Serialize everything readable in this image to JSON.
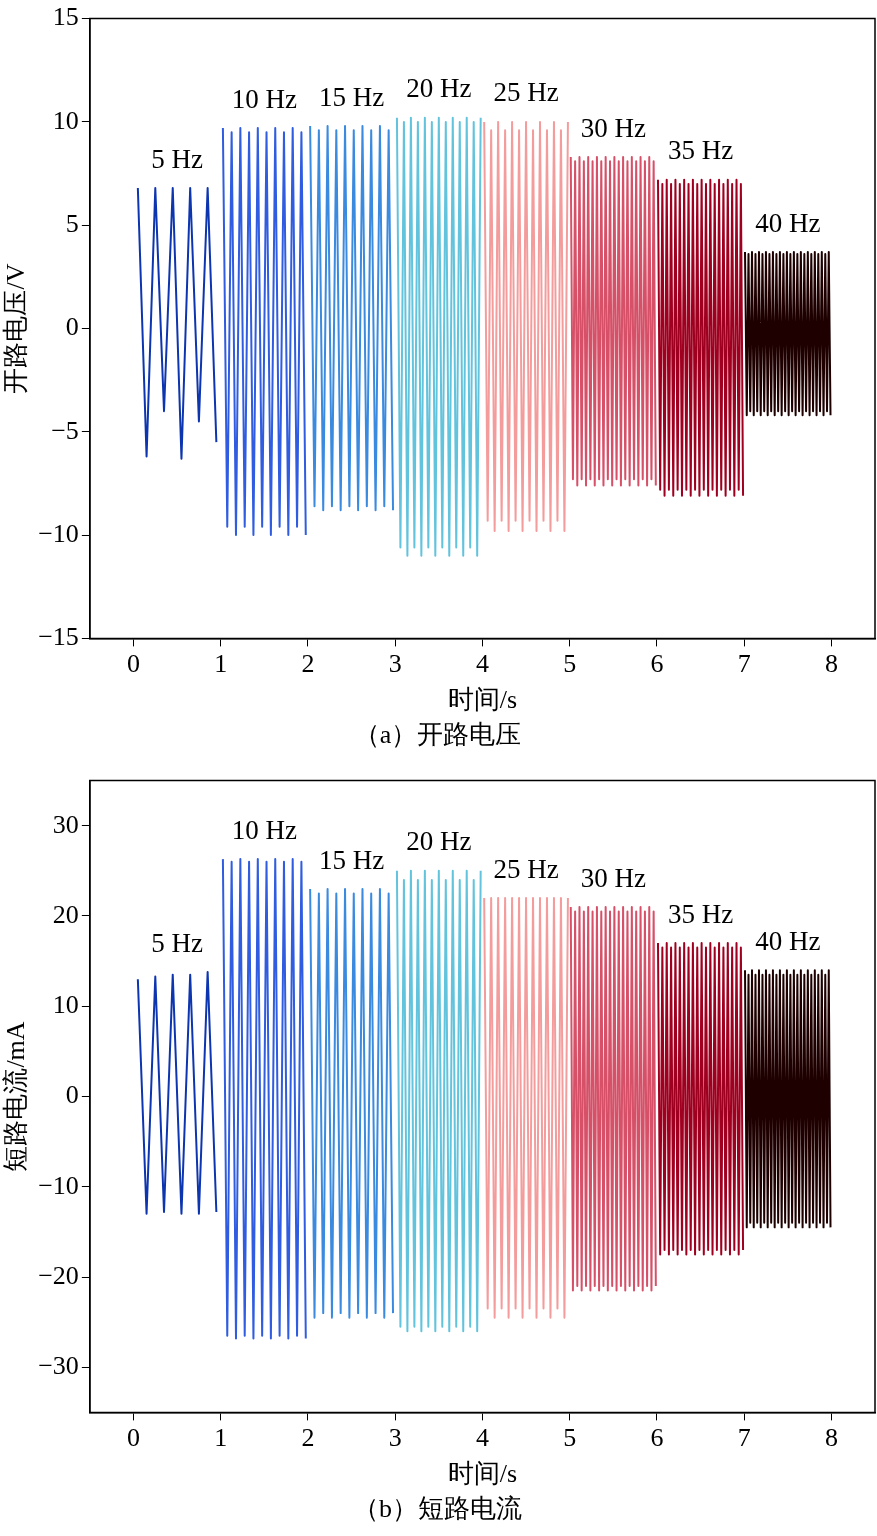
{
  "chart_data": [
    {
      "type": "line",
      "title": "（a）开路电压",
      "xlabel": "时间/s",
      "ylabel": "开路电压/V",
      "xlim": [
        -0.5,
        8.5
      ],
      "ylim": [
        -15,
        15
      ],
      "xticks": [
        0,
        1,
        2,
        3,
        4,
        5,
        6,
        7,
        8
      ],
      "yticks": [
        {
          "value": -15,
          "label": "−15"
        },
        {
          "value": -10,
          "label": "−10"
        },
        {
          "value": -5,
          "label": "−5"
        },
        0,
        5,
        10,
        15
      ],
      "grid": false,
      "legend": false,
      "marker": "none",
      "series": [
        {
          "color": "#0d35b0",
          "x": [
            0.05,
            0.15,
            0.25,
            0.35,
            0.45,
            0.55,
            0.65,
            0.75,
            0.85,
            0.95
          ],
          "name": "5 Hz",
          "values": [
            6.8,
            -6.2,
            6.8,
            -4,
            6.8,
            -6.3,
            6.8,
            -4.5,
            6.8,
            -5.5
          ]
        },
        {
          "color": "#2f5ce0",
          "x": [
            1.025,
            1.075,
            1.125,
            1.175,
            1.225,
            1.275,
            1.325,
            1.375,
            1.425,
            1.475,
            1.525,
            1.575,
            1.625,
            1.675,
            1.725,
            1.775,
            1.825,
            1.875,
            1.925,
            1.975
          ],
          "name": "10 Hz",
          "values": [
            9.7,
            -9.6,
            9.5,
            -10,
            9.7,
            -9.6,
            9.5,
            -10,
            9.7,
            -9.6,
            9.5,
            -10,
            9.7,
            -9.6,
            9.5,
            -10,
            9.7,
            -9.6,
            9.5,
            -10
          ]
        },
        {
          "color": "#3a8ae0",
          "x": [
            2.025,
            2.075,
            2.125,
            2.175,
            2.225,
            2.275,
            2.325,
            2.375,
            2.425,
            2.475,
            2.525,
            2.575,
            2.625,
            2.675,
            2.725,
            2.775,
            2.825,
            2.875,
            2.925,
            2.975
          ],
          "name": "15 Hz",
          "values": [
            9.8,
            -8.6,
            9.6,
            -8.8,
            9.8,
            -8.6,
            9.6,
            -8.8,
            9.8,
            -8.6,
            9.6,
            -8.8,
            9.8,
            -8.6,
            9.6,
            -8.8,
            9.8,
            -8.6,
            9.6,
            -8.8
          ]
        },
        {
          "color": "#62c3dc",
          "x": [
            3.02,
            3.06,
            3.1,
            3.14,
            3.18,
            3.22,
            3.26,
            3.3,
            3.34,
            3.38,
            3.42,
            3.46,
            3.5,
            3.54,
            3.58,
            3.62,
            3.66,
            3.7,
            3.74,
            3.78,
            3.82,
            3.86,
            3.9,
            3.94,
            3.98
          ],
          "name": "20 Hz",
          "values": [
            10.2,
            -10.6,
            10,
            -11,
            10.2,
            -10.6,
            10,
            -11,
            10.2,
            -10.6,
            10,
            -11,
            10.2,
            -10.6,
            10,
            -11,
            10.2,
            -10.6,
            10,
            -11,
            10.2,
            -10.6,
            10,
            -11,
            10.2
          ]
        },
        {
          "color": "#f49c9c",
          "x": [
            4.02,
            4.06,
            4.1,
            4.14,
            4.18,
            4.22,
            4.26,
            4.3,
            4.34,
            4.38,
            4.42,
            4.46,
            4.5,
            4.54,
            4.58,
            4.62,
            4.66,
            4.7,
            4.74,
            4.78,
            4.82,
            4.86,
            4.9,
            4.94,
            4.98
          ],
          "name": "25 Hz",
          "values": [
            10,
            -9.3,
            9.6,
            -9.8,
            10,
            -9.3,
            9.6,
            -9.8,
            10,
            -9.3,
            9.6,
            -9.8,
            10,
            -9.3,
            9.6,
            -9.8,
            10,
            -9.3,
            9.6,
            -9.8,
            10,
            -9.3,
            9.6,
            -9.8,
            10
          ]
        },
        {
          "color": "#d65068",
          "x": [
            5.0125,
            5.0375,
            5.0625,
            5.0875,
            5.1125,
            5.1375,
            5.1625,
            5.1875,
            5.2125,
            5.2375,
            5.2625,
            5.2875,
            5.3125,
            5.3375,
            5.3625,
            5.3875,
            5.4125,
            5.4375,
            5.4625,
            5.4875,
            5.5125,
            5.5375,
            5.5625,
            5.5875,
            5.6125,
            5.6375,
            5.6625,
            5.6875,
            5.7125,
            5.7375,
            5.7625,
            5.7875,
            5.8125,
            5.8375,
            5.8625,
            5.8875,
            5.9125,
            5.9375,
            5.9625,
            5.9875
          ],
          "name": "30 Hz",
          "values": [
            8.3,
            -7.3,
            8.1,
            -7.6,
            8.3,
            -7.3,
            8.1,
            -7.6,
            8.3,
            -7.3,
            8.1,
            -7.6,
            8.3,
            -7.3,
            8.1,
            -7.6,
            8.3,
            -7.3,
            8.1,
            -7.6,
            8.3,
            -7.3,
            8.1,
            -7.6,
            8.3,
            -7.3,
            8.1,
            -7.6,
            8.3,
            -7.3,
            8.1,
            -7.6,
            8.3,
            -7.3,
            8.1,
            -7.6,
            8.3,
            -7.3,
            8.1,
            -7.6
          ]
        },
        {
          "color": "#a00020",
          "x": [
            6.0125,
            6.0375,
            6.0625,
            6.0875,
            6.1125,
            6.1375,
            6.1625,
            6.1875,
            6.2125,
            6.2375,
            6.2625,
            6.2875,
            6.3125,
            6.3375,
            6.3625,
            6.3875,
            6.4125,
            6.4375,
            6.4625,
            6.4875,
            6.5125,
            6.5375,
            6.5625,
            6.5875,
            6.6125,
            6.6375,
            6.6625,
            6.6875,
            6.7125,
            6.7375,
            6.7625,
            6.7875,
            6.8125,
            6.8375,
            6.8625,
            6.8875,
            6.9125,
            6.9375,
            6.9625,
            6.9875
          ],
          "name": "35 Hz",
          "values": [
            7.2,
            -7.8,
            7,
            -8.1,
            7.2,
            -7.8,
            7,
            -8.1,
            7.2,
            -7.8,
            7,
            -8.1,
            7.2,
            -7.8,
            7,
            -8.1,
            7.2,
            -7.8,
            7,
            -8.1,
            7.2,
            -7.8,
            7,
            -8.1,
            7.2,
            -7.8,
            7,
            -8.1,
            7.2,
            -7.8,
            7,
            -8.1,
            7.2,
            -7.8,
            7,
            -8.1,
            7.2,
            -7.8,
            7,
            -8.1
          ]
        },
        {
          "color": "#1e0000",
          "x": [
            7.01,
            7.03,
            7.05,
            7.07,
            7.09,
            7.11,
            7.13,
            7.15,
            7.17,
            7.19,
            7.21,
            7.23,
            7.25,
            7.27,
            7.29,
            7.31,
            7.33,
            7.35,
            7.37,
            7.39,
            7.41,
            7.43,
            7.45,
            7.47,
            7.49,
            7.51,
            7.53,
            7.55,
            7.57,
            7.59,
            7.61,
            7.63,
            7.65,
            7.67,
            7.69,
            7.71,
            7.73,
            7.75,
            7.77,
            7.79,
            7.81,
            7.83,
            7.85,
            7.87,
            7.89,
            7.91,
            7.93,
            7.95,
            7.97,
            7.99
          ],
          "name": "40 Hz",
          "values": [
            3.7,
            -4.2,
            3.6,
            -4,
            3.7,
            -4.2,
            3.6,
            -4,
            3.7,
            -4.2,
            3.6,
            -4,
            3.7,
            -4.2,
            3.6,
            -4,
            3.7,
            -4.2,
            3.6,
            -4,
            3.7,
            -4.2,
            3.6,
            -4,
            3.7,
            -4.2,
            3.6,
            -4,
            3.7,
            -4.2,
            3.6,
            -4,
            3.7,
            -4.2,
            3.6,
            -4,
            3.7,
            -4.2,
            3.6,
            -4,
            3.7,
            -4.2,
            3.6,
            -4,
            3.7,
            -4.2,
            3.6,
            -4,
            3.7,
            -4.2
          ]
        }
      ]
    },
    {
      "type": "line",
      "title": "（b）短路电流",
      "xlabel": "时间/s",
      "ylabel": "短路电流/mA",
      "xlim": [
        -0.5,
        8.5
      ],
      "ylim": [
        -35,
        35
      ],
      "xticks": [
        0,
        1,
        2,
        3,
        4,
        5,
        6,
        7,
        8
      ],
      "yticks": [
        {
          "value": -30,
          "label": "−30"
        },
        {
          "value": -20,
          "label": "−20"
        },
        {
          "value": -10,
          "label": "−10"
        },
        0,
        10,
        20,
        30
      ],
      "grid": false,
      "legend": false,
      "marker": "none",
      "series": [
        {
          "color": "#0d35b0",
          "x": [
            0.05,
            0.15,
            0.25,
            0.35,
            0.45,
            0.55,
            0.65,
            0.75,
            0.85,
            0.95
          ],
          "name": "5 Hz",
          "values": [
            13,
            -13,
            13.3,
            -12.8,
            13.5,
            -13,
            13.5,
            -13,
            13.8,
            -12.8
          ]
        },
        {
          "color": "#2f5ce0",
          "x": [
            1.025,
            1.075,
            1.125,
            1.175,
            1.225,
            1.275,
            1.325,
            1.375,
            1.425,
            1.475,
            1.525,
            1.575,
            1.625,
            1.675,
            1.725,
            1.775,
            1.825,
            1.875,
            1.925,
            1.975
          ],
          "name": "10 Hz",
          "values": [
            26.3,
            -26.5,
            26,
            -26.8,
            26.3,
            -26.5,
            26,
            -26.8,
            26.3,
            -26.5,
            26,
            -26.8,
            26.3,
            -26.5,
            26,
            -26.8,
            26.3,
            -26.5,
            26,
            -26.8
          ]
        },
        {
          "color": "#3a8ae0",
          "x": [
            2.025,
            2.075,
            2.125,
            2.175,
            2.225,
            2.275,
            2.325,
            2.375,
            2.425,
            2.475,
            2.525,
            2.575,
            2.625,
            2.675,
            2.725,
            2.775,
            2.825,
            2.875,
            2.925,
            2.975
          ],
          "name": "15 Hz",
          "values": [
            23,
            -24.5,
            22.5,
            -24,
            23,
            -24.5,
            22.5,
            -24,
            23,
            -24.5,
            22.5,
            -24,
            23,
            -24.5,
            22.5,
            -24,
            23,
            -24.5,
            22.5,
            -24
          ]
        },
        {
          "color": "#62c3dc",
          "x": [
            3.02,
            3.06,
            3.1,
            3.14,
            3.18,
            3.22,
            3.26,
            3.3,
            3.34,
            3.38,
            3.42,
            3.46,
            3.5,
            3.54,
            3.58,
            3.62,
            3.66,
            3.7,
            3.74,
            3.78,
            3.82,
            3.86,
            3.9,
            3.94,
            3.98
          ],
          "name": "20 Hz",
          "values": [
            25,
            -25.5,
            24,
            -26,
            25,
            -25.5,
            24,
            -26,
            25,
            -25.5,
            24,
            -26,
            25,
            -25.5,
            24,
            -26,
            25,
            -25.5,
            24,
            -26,
            25,
            -25.5,
            24,
            -26,
            25
          ]
        },
        {
          "color": "#f49c9c",
          "x": [
            4.02,
            4.06,
            4.1,
            4.14,
            4.18,
            4.22,
            4.26,
            4.3,
            4.34,
            4.38,
            4.42,
            4.46,
            4.5,
            4.54,
            4.58,
            4.62,
            4.66,
            4.7,
            4.74,
            4.78,
            4.82,
            4.86,
            4.9,
            4.94,
            4.98
          ],
          "name": "25 Hz",
          "values": [
            22,
            -23.5,
            22,
            -24.5,
            22,
            -23.5,
            22,
            -24.5,
            22,
            -23.5,
            22,
            -24.5,
            22,
            -23.5,
            22,
            -24.5,
            22,
            -23.5,
            22,
            -24.5,
            22,
            -23.5,
            22,
            -24.5,
            22
          ]
        },
        {
          "color": "#d65068",
          "x": [
            5.0125,
            5.0375,
            5.0625,
            5.0875,
            5.1125,
            5.1375,
            5.1625,
            5.1875,
            5.2125,
            5.2375,
            5.2625,
            5.2875,
            5.3125,
            5.3375,
            5.3625,
            5.3875,
            5.4125,
            5.4375,
            5.4625,
            5.4875,
            5.5125,
            5.5375,
            5.5625,
            5.5875,
            5.6125,
            5.6375,
            5.6625,
            5.6875,
            5.7125,
            5.7375,
            5.7625,
            5.7875,
            5.8125,
            5.8375,
            5.8625,
            5.8875,
            5.9125,
            5.9375,
            5.9625,
            5.9875
          ],
          "name": "30 Hz",
          "values": [
            21,
            -21.5,
            20.5,
            -21,
            21,
            -21.5,
            20.5,
            -21,
            21,
            -21.5,
            20.5,
            -21,
            21,
            -21.5,
            20.5,
            -21,
            21,
            -21.5,
            20.5,
            -21,
            21,
            -21.5,
            20.5,
            -21,
            21,
            -21.5,
            20.5,
            -21,
            21,
            -21.5,
            20.5,
            -21,
            21,
            -21.5,
            20.5,
            -21,
            21,
            -21.5,
            20.5,
            -21
          ]
        },
        {
          "color": "#a00020",
          "x": [
            6.0125,
            6.0375,
            6.0625,
            6.0875,
            6.1125,
            6.1375,
            6.1625,
            6.1875,
            6.2125,
            6.2375,
            6.2625,
            6.2875,
            6.3125,
            6.3375,
            6.3625,
            6.3875,
            6.4125,
            6.4375,
            6.4625,
            6.4875,
            6.5125,
            6.5375,
            6.5625,
            6.5875,
            6.6125,
            6.6375,
            6.6625,
            6.6875,
            6.7125,
            6.7375,
            6.7625,
            6.7875,
            6.8125,
            6.8375,
            6.8625,
            6.8875,
            6.9125,
            6.9375,
            6.9625,
            6.9875
          ],
          "name": "35 Hz",
          "values": [
            17,
            -17.5,
            16.5,
            -17,
            17,
            -17.5,
            16.5,
            -17,
            17,
            -17.5,
            16.5,
            -17,
            17,
            -17.5,
            16.5,
            -17,
            17,
            -17.5,
            16.5,
            -17,
            17,
            -17.5,
            16.5,
            -17,
            17,
            -17.5,
            16.5,
            -17,
            17,
            -17.5,
            16.5,
            -17,
            17,
            -17.5,
            16.5,
            -17,
            17,
            -17.5,
            16.5,
            -17
          ]
        },
        {
          "color": "#1e0000",
          "x": [
            7.01,
            7.03,
            7.05,
            7.07,
            7.09,
            7.11,
            7.13,
            7.15,
            7.17,
            7.19,
            7.21,
            7.23,
            7.25,
            7.27,
            7.29,
            7.31,
            7.33,
            7.35,
            7.37,
            7.39,
            7.41,
            7.43,
            7.45,
            7.47,
            7.49,
            7.51,
            7.53,
            7.55,
            7.57,
            7.59,
            7.61,
            7.63,
            7.65,
            7.67,
            7.69,
            7.71,
            7.73,
            7.75,
            7.77,
            7.79,
            7.81,
            7.83,
            7.85,
            7.87,
            7.89,
            7.91,
            7.93,
            7.95,
            7.97,
            7.99
          ],
          "name": "40 Hz",
          "values": [
            14,
            -14.5,
            13.5,
            -14,
            14,
            -14.5,
            13.5,
            -14,
            14,
            -14.5,
            13.5,
            -14,
            14,
            -14.5,
            13.5,
            -14,
            14,
            -14.5,
            13.5,
            -14,
            14,
            -14.5,
            13.5,
            -14,
            14,
            -14.5,
            13.5,
            -14,
            14,
            -14.5,
            13.5,
            -14,
            14,
            -14.5,
            13.5,
            -14,
            14,
            -14.5,
            13.5,
            -14,
            14,
            -14.5,
            13.5,
            -14,
            14,
            -14.5,
            13.5,
            -14,
            14,
            -14.5
          ]
        }
      ]
    }
  ]
}
